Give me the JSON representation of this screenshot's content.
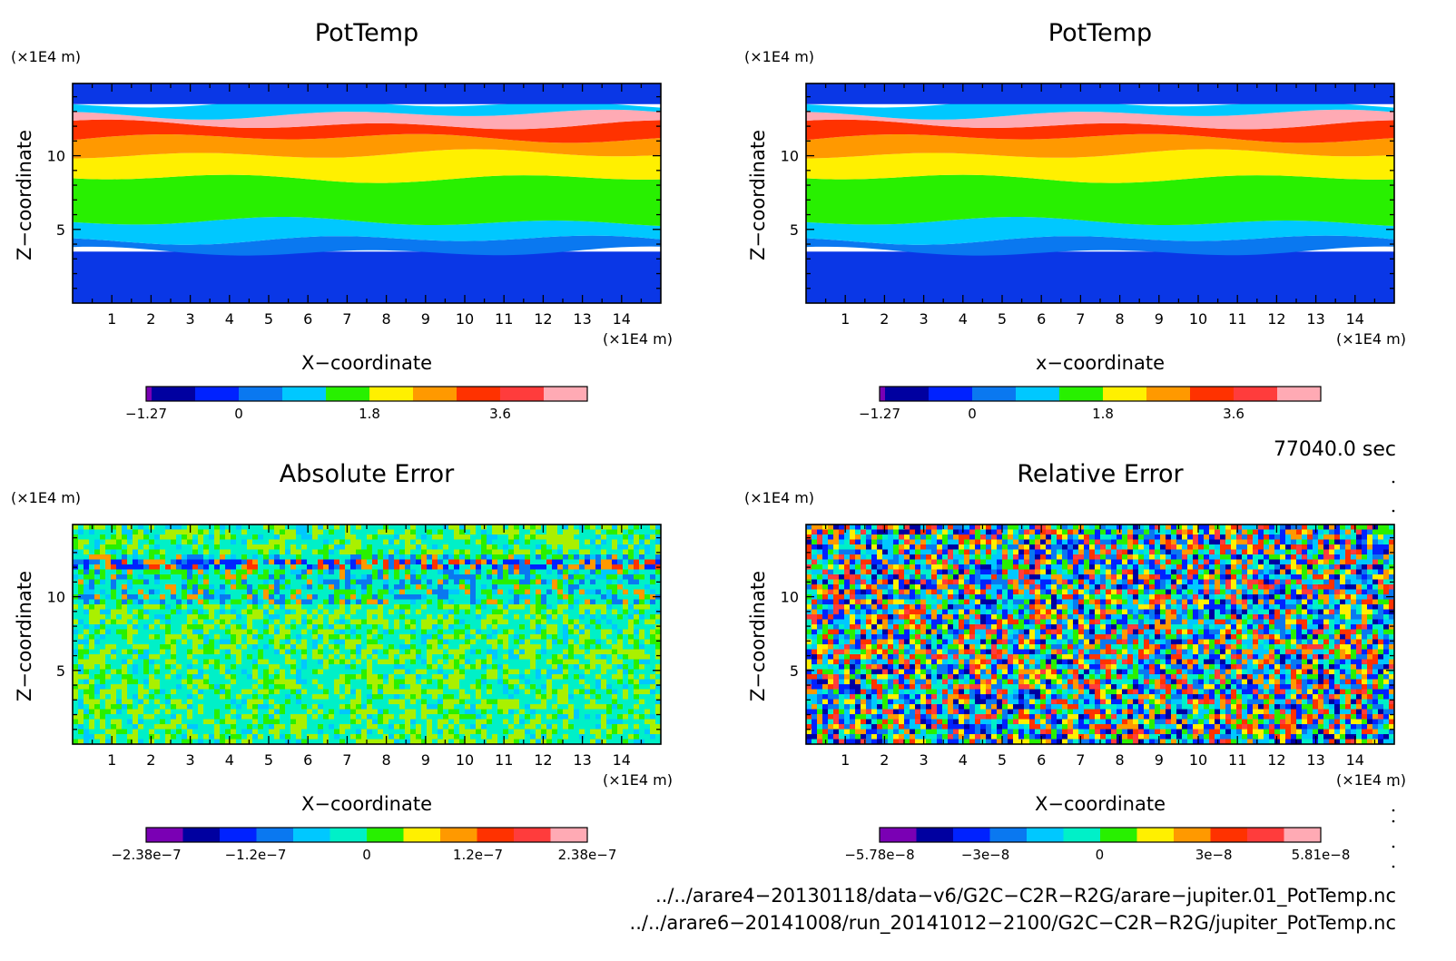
{
  "panels": [
    {
      "title": "PotTemp",
      "ylabel": "Z−coordinate",
      "xlabel": "X−coordinate",
      "yunit": "(×1E4 m)",
      "xunit": "(×1E4 m)",
      "colorbar_ticks": [
        "−1.27",
        "0",
        "1.8",
        "3.6"
      ]
    },
    {
      "title": "PotTemp",
      "ylabel": "Z−coordinate",
      "xlabel": "x−coordinate",
      "yunit": "(×1E4 m)",
      "xunit": "(×1E4 m)",
      "colorbar_ticks": [
        "−1.27",
        "0",
        "1.8",
        "3.6"
      ]
    },
    {
      "title": "Absolute Error",
      "ylabel": "Z−coordinate",
      "xlabel": "X−coordinate",
      "yunit": "(×1E4 m)",
      "xunit": "(×1E4 m)",
      "colorbar_ticks": [
        "−2.38e−7",
        "−1.2e−7",
        "0",
        "1.2e−7",
        "2.38e−7"
      ]
    },
    {
      "title": "Relative Error",
      "ylabel": "Z−coordinate",
      "xlabel": "X−coordinate",
      "yunit": "(×1E4 m)",
      "xunit": "(×1E4 m)",
      "colorbar_ticks": [
        "−5.78e−8",
        "−3e−8",
        "0",
        "3e−8",
        "5.81e−8"
      ]
    }
  ],
  "time_label": "77040.0 sec",
  "footer": {
    "line1": "../../arare4−20130118/data−v6/G2C−C2R−R2G/arare−jupiter.01_PotTemp.nc",
    "line2": "../../arare6−20141008/run_20141012−2100/G2C−C2R−R2G/jupiter_PotTemp.nc"
  },
  "colors": {
    "palette12": [
      "#7a00b4",
      "#0000a0",
      "#0022ff",
      "#0a78f0",
      "#00c8ff",
      "#00f0c8",
      "#28f000",
      "#fff000",
      "#ff9900",
      "#ff3200",
      "#ff3c3c",
      "#ffaab4"
    ],
    "potential_temperature_bands": [
      "#0a37e6",
      "#0a78f0",
      "#00c8ff",
      "#28f000",
      "#fff000",
      "#ff9900",
      "#ff3200",
      "#ff3c3c",
      "#ffaab4"
    ]
  },
  "chart_data": [
    {
      "type": "heatmap",
      "title": "PotTemp",
      "xlabel": "X−coordinate",
      "ylabel": "Z−coordinate",
      "xunit": "×1E4 m",
      "yunit": "×1E4 m",
      "xlim": [
        0,
        15
      ],
      "ylim": [
        0,
        14.9
      ],
      "xticks": [
        1,
        2,
        3,
        4,
        5,
        6,
        7,
        8,
        9,
        10,
        11,
        12,
        13,
        14
      ],
      "yticks": [
        5,
        10
      ],
      "colorbar": {
        "min": -1.27,
        "max": 5.4,
        "ticks": [
          -1.27,
          0,
          1.8,
          3.6
        ]
      },
      "contour_bands_z": [
        {
          "z_from": 0,
          "z_to": 3.5,
          "color": "#0a37e6"
        },
        {
          "z_from": 3.5,
          "z_to": 4.3,
          "color": "#0a78f0"
        },
        {
          "z_from": 4.3,
          "z_to": 5.5,
          "color": "#00c8ff"
        },
        {
          "z_from": 5.5,
          "z_to": 8.5,
          "color": "#28f000"
        },
        {
          "z_from": 8.5,
          "z_to": 10.1,
          "color": "#fff000"
        },
        {
          "z_from": 10.1,
          "z_to": 11.2,
          "color": "#ff9900"
        },
        {
          "z_from": 11.2,
          "z_to": 12.1,
          "color": "#ff3200"
        },
        {
          "z_from": 12.1,
          "z_to": 12.8,
          "color": "#ffaab4"
        },
        {
          "z_from": 12.8,
          "z_to": 13.5,
          "color": "#00c8ff"
        },
        {
          "z_from": 13.5,
          "z_to": 14.9,
          "color": "#0a37e6"
        }
      ]
    },
    {
      "type": "heatmap",
      "title": "PotTemp",
      "xlabel": "x−coordinate",
      "ylabel": "Z−coordinate",
      "xunit": "×1E4 m",
      "yunit": "×1E4 m",
      "xlim": [
        0,
        15
      ],
      "ylim": [
        0,
        14.9
      ],
      "xticks": [
        1,
        2,
        3,
        4,
        5,
        6,
        7,
        8,
        9,
        10,
        11,
        12,
        13,
        14
      ],
      "yticks": [
        5,
        10
      ],
      "colorbar": {
        "min": -1.27,
        "max": 5.4,
        "ticks": [
          -1.27,
          0,
          1.8,
          3.6
        ]
      },
      "contour_bands_z": [
        {
          "z_from": 0,
          "z_to": 3.5,
          "color": "#0a37e6"
        },
        {
          "z_from": 3.5,
          "z_to": 4.3,
          "color": "#0a78f0"
        },
        {
          "z_from": 4.3,
          "z_to": 5.5,
          "color": "#00c8ff"
        },
        {
          "z_from": 5.5,
          "z_to": 8.5,
          "color": "#28f000"
        },
        {
          "z_from": 8.5,
          "z_to": 10.1,
          "color": "#fff000"
        },
        {
          "z_from": 10.1,
          "z_to": 11.2,
          "color": "#ff9900"
        },
        {
          "z_from": 11.2,
          "z_to": 12.1,
          "color": "#ff3200"
        },
        {
          "z_from": 12.1,
          "z_to": 12.8,
          "color": "#ffaab4"
        },
        {
          "z_from": 12.8,
          "z_to": 13.5,
          "color": "#00c8ff"
        },
        {
          "z_from": 13.5,
          "z_to": 14.9,
          "color": "#0a37e6"
        }
      ]
    },
    {
      "type": "heatmap",
      "title": "Absolute Error",
      "xlabel": "X−coordinate",
      "ylabel": "Z−coordinate",
      "xunit": "×1E4 m",
      "yunit": "×1E4 m",
      "xlim": [
        0,
        15
      ],
      "ylim": [
        0,
        14.9
      ],
      "xticks": [
        1,
        2,
        3,
        4,
        5,
        6,
        7,
        8,
        9,
        10,
        11,
        12,
        13,
        14
      ],
      "yticks": [
        5,
        10
      ],
      "colorbar": {
        "min": -2.38e-07,
        "max": 2.38e-07,
        "ticks": [
          -2.38e-07,
          -1.2e-07,
          0,
          1.2e-07,
          2.38e-07
        ]
      },
      "pattern": "noise, mostly near zero, strong band near z = 12"
    },
    {
      "type": "heatmap",
      "title": "Relative Error",
      "xlabel": "X−coordinate",
      "ylabel": "Z−coordinate",
      "xunit": "×1E4 m",
      "yunit": "×1E4 m",
      "xlim": [
        0,
        15
      ],
      "ylim": [
        0,
        14.9
      ],
      "xticks": [
        1,
        2,
        3,
        4,
        5,
        6,
        7,
        8,
        9,
        10,
        11,
        12,
        13,
        14
      ],
      "yticks": [
        5,
        10
      ],
      "colorbar": {
        "min": -5.78e-08,
        "max": 5.81e-08,
        "ticks": [
          -5.78e-08,
          -3e-08,
          0,
          3e-08,
          5.81e-08
        ]
      },
      "pattern": "noise spanning full range"
    }
  ]
}
